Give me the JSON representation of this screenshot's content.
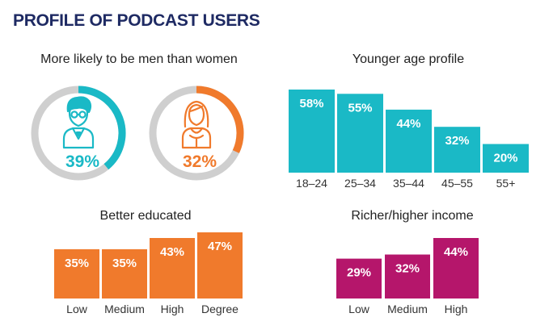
{
  "title": "PROFILE OF PODCAST USERS",
  "colors": {
    "title": "#1e2a63",
    "teal": "#1ab9c6",
    "orange": "#f07a2c",
    "magenta": "#b5166b",
    "ring_track": "#cfcfcf"
  },
  "chart_data": [
    {
      "type": "pie",
      "title": "More likely to be men than women",
      "items": [
        {
          "name": "Men",
          "icon": "man-with-glasses-icon",
          "value": 39,
          "label": "39%",
          "color": "#1ab9c6"
        },
        {
          "name": "Women",
          "icon": "woman-icon",
          "value": 32,
          "label": "32%",
          "color": "#f07a2c"
        }
      ]
    },
    {
      "type": "bar",
      "title": "Younger age profile",
      "categories": [
        "18–24",
        "25–34",
        "35–44",
        "45–55",
        "55+"
      ],
      "values": [
        58,
        55,
        44,
        32,
        20
      ],
      "labels": [
        "58%",
        "55%",
        "44%",
        "32%",
        "20%"
      ],
      "color": "#1ab9c6",
      "ylim": [
        0,
        58
      ]
    },
    {
      "type": "bar",
      "title": "Better educated",
      "categories": [
        "Low",
        "Medium",
        "High",
        "Degree"
      ],
      "values": [
        35,
        35,
        43,
        47
      ],
      "labels": [
        "35%",
        "35%",
        "43%",
        "47%"
      ],
      "color": "#f07a2c",
      "ylim": [
        0,
        47
      ]
    },
    {
      "type": "bar",
      "title": "Richer/higher income",
      "categories": [
        "Low",
        "Medium",
        "High"
      ],
      "values": [
        29,
        32,
        44
      ],
      "labels": [
        "29%",
        "32%",
        "44%"
      ],
      "color": "#b5166b",
      "ylim": [
        0,
        44
      ]
    }
  ]
}
